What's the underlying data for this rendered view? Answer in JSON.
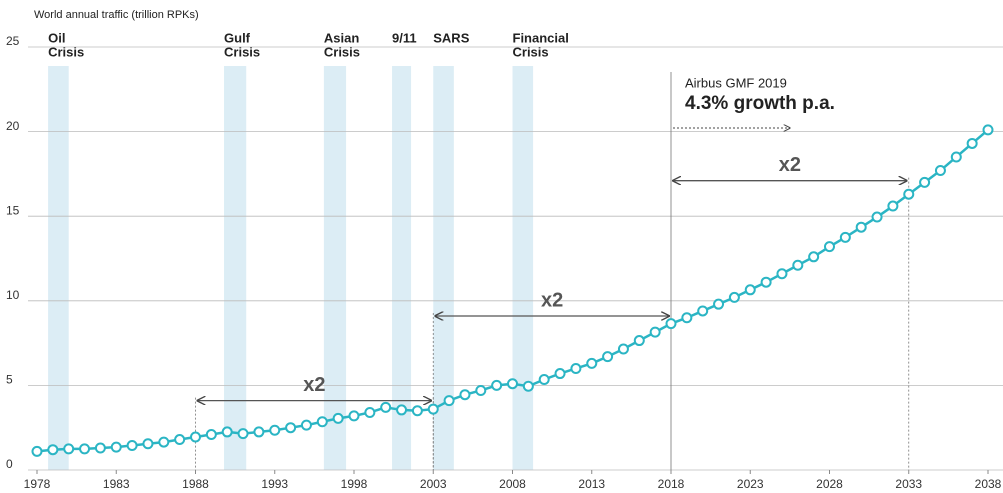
{
  "chart_data": {
    "type": "line",
    "y_axis_label": "World annual traffic (trillion RPKs)",
    "color": "#2bb5c4",
    "x": [
      1978,
      1979,
      1980,
      1981,
      1982,
      1983,
      1984,
      1985,
      1986,
      1987,
      1988,
      1989,
      1990,
      1991,
      1992,
      1993,
      1994,
      1995,
      1996,
      1997,
      1998,
      1999,
      2000,
      2001,
      2002,
      2003,
      2004,
      2005,
      2006,
      2007,
      2008,
      2009,
      2010,
      2011,
      2012,
      2013,
      2014,
      2015,
      2016,
      2017,
      2018,
      2019,
      2020,
      2021,
      2022,
      2023,
      2024,
      2025,
      2026,
      2027,
      2028,
      2029,
      2030,
      2031,
      2032,
      2033,
      2034,
      2035,
      2036,
      2037,
      2038
    ],
    "values": [
      1.1,
      1.2,
      1.25,
      1.25,
      1.3,
      1.35,
      1.45,
      1.55,
      1.65,
      1.8,
      1.95,
      2.1,
      2.25,
      2.15,
      2.25,
      2.35,
      2.5,
      2.65,
      2.85,
      3.05,
      3.2,
      3.4,
      3.7,
      3.55,
      3.5,
      3.6,
      4.1,
      4.45,
      4.7,
      5.0,
      5.1,
      4.95,
      5.35,
      5.7,
      6.0,
      6.3,
      6.7,
      7.15,
      7.65,
      8.15,
      8.65,
      9.0,
      9.4,
      9.8,
      10.2,
      10.65,
      11.1,
      11.6,
      12.1,
      12.6,
      13.2,
      13.75,
      14.35,
      14.95,
      15.6,
      16.3,
      17.0,
      17.7,
      18.5,
      19.3,
      20.1
    ],
    "xlim": [
      1978,
      2038
    ],
    "ylim": [
      0,
      25
    ],
    "xticks": [
      1978,
      1983,
      1988,
      1993,
      1998,
      2003,
      2008,
      2013,
      2018,
      2023,
      2028,
      2033,
      2038
    ],
    "yticks": [
      0,
      5,
      10,
      15,
      20,
      25
    ],
    "grid": true,
    "crises": [
      {
        "label": [
          "Oil",
          "Crisis"
        ],
        "start": 1978.7,
        "end": 1980.0
      },
      {
        "label": [
          "Gulf",
          "Crisis"
        ],
        "start": 1989.8,
        "end": 1991.2
      },
      {
        "label": [
          "Asian",
          "Crisis"
        ],
        "start": 1996.1,
        "end": 1997.5
      },
      {
        "label": [
          "9/11"
        ],
        "start": 2000.4,
        "end": 2001.6
      },
      {
        "label": [
          "SARS"
        ],
        "start": 2003.0,
        "end": 2004.3
      },
      {
        "label": [
          "Financial",
          "Crisis"
        ],
        "start": 2008.0,
        "end": 2009.3
      }
    ],
    "doublings": [
      {
        "label": "x2",
        "start": 1988,
        "end": 2003,
        "level": 4.1
      },
      {
        "label": "x2",
        "start": 2003,
        "end": 2018,
        "level": 9.1
      },
      {
        "label": "x2",
        "start": 2018,
        "end": 2033,
        "level": 17.1
      }
    ],
    "forecast": {
      "title": "Airbus GMF 2019",
      "subtitle": "4.3% growth p.a.",
      "start": 2018,
      "arrow_end": 2025.5
    }
  }
}
